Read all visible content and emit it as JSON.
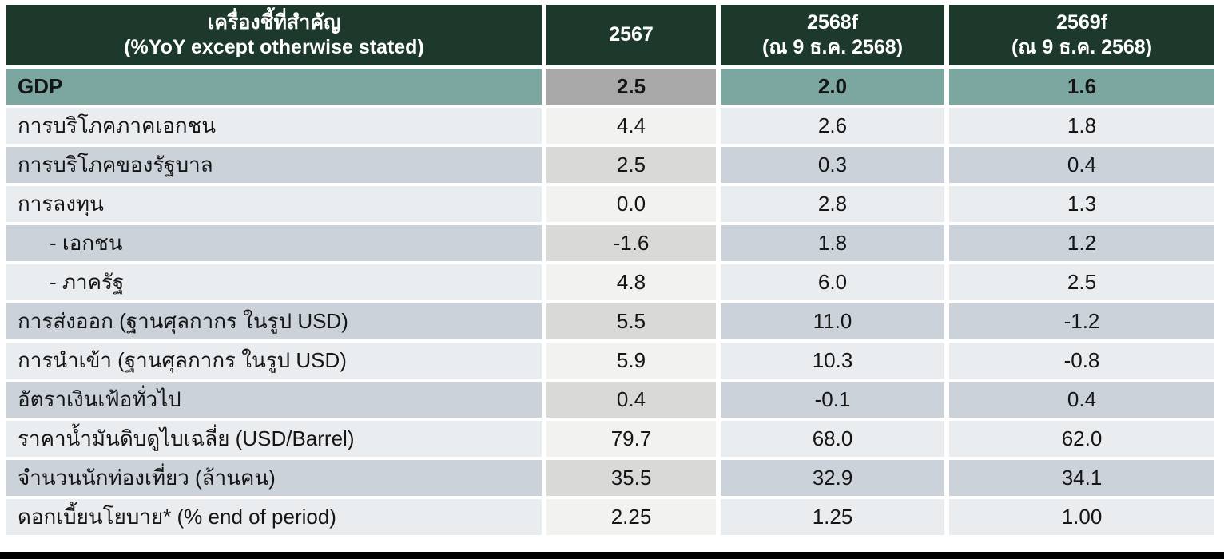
{
  "colors": {
    "header_bg": "#1c392c",
    "header_text": "#ffffff",
    "gdp_row_bg": "#7ba7a0",
    "gdp_2567_bg": "#a8a8a8",
    "row_light_bg": "#e9edf0",
    "row_light_2567_bg": "#f2f2f1",
    "row_dark_bg": "#ccd2da",
    "row_dark_2567_bg": "#d9d9d8",
    "bottom_bar": "#000000",
    "body_text": "#151515"
  },
  "chart_data": {
    "type": "table",
    "title": "เครื่องชี้ที่สำคัญ (%YoY except otherwise stated)",
    "header": {
      "indicator_title": "เครื่องชี้ที่สำคัญ",
      "indicator_subtitle": "(%YoY except otherwise stated)",
      "col_2567": "2567",
      "col_2568": "2568f",
      "col_2568_note": "(ณ 9 ธ.ค. 2568)",
      "col_2569": "2569f",
      "col_2569_note": "(ณ 9 ธ.ค. 2568)"
    },
    "columns": [
      "เครื่องชี้ที่สำคัญ (%YoY except otherwise stated)",
      "2567",
      "2568f (ณ 9 ธ.ค. 2568)",
      "2569f (ณ 9 ธ.ค. 2568)"
    ],
    "rows": [
      {
        "label": "GDP",
        "values": [
          "2.5",
          "2.0",
          "1.6"
        ]
      },
      {
        "label": "การบริโภคภาคเอกชน",
        "values": [
          "4.4",
          "2.6",
          "1.8"
        ]
      },
      {
        "label": "การบริโภคของรัฐบาล",
        "values": [
          "2.5",
          "0.3",
          "0.4"
        ]
      },
      {
        "label": "การลงทุน",
        "values": [
          "0.0",
          "2.8",
          "1.3"
        ]
      },
      {
        "label": "- เอกชน",
        "values": [
          "-1.6",
          "1.8",
          "1.2"
        ]
      },
      {
        "label": "- ภาครัฐ",
        "values": [
          "4.8",
          "6.0",
          "2.5"
        ]
      },
      {
        "label": "การส่งออก (ฐานศุลกากร ในรูป USD)",
        "values": [
          "5.5",
          "11.0",
          "-1.2"
        ]
      },
      {
        "label": "การนำเข้า (ฐานศุลกากร ในรูป USD)",
        "values": [
          "5.9",
          "10.3",
          "-0.8"
        ]
      },
      {
        "label": "อัตราเงินเฟ้อทั่วไป",
        "values": [
          "0.4",
          "-0.1",
          "0.4"
        ]
      },
      {
        "label": "ราคาน้ำมันดิบดูไบเฉลี่ย (USD/Barrel)",
        "values": [
          "79.7",
          "68.0",
          "62.0"
        ]
      },
      {
        "label": "จำนวนนักท่องเที่ยว (ล้านคน)",
        "values": [
          "35.5",
          "32.9",
          "34.1"
        ]
      },
      {
        "label": "ดอกเบี้ยนโยบาย* (% end of period)",
        "values": [
          "2.25",
          "1.25",
          "1.00"
        ]
      }
    ]
  }
}
